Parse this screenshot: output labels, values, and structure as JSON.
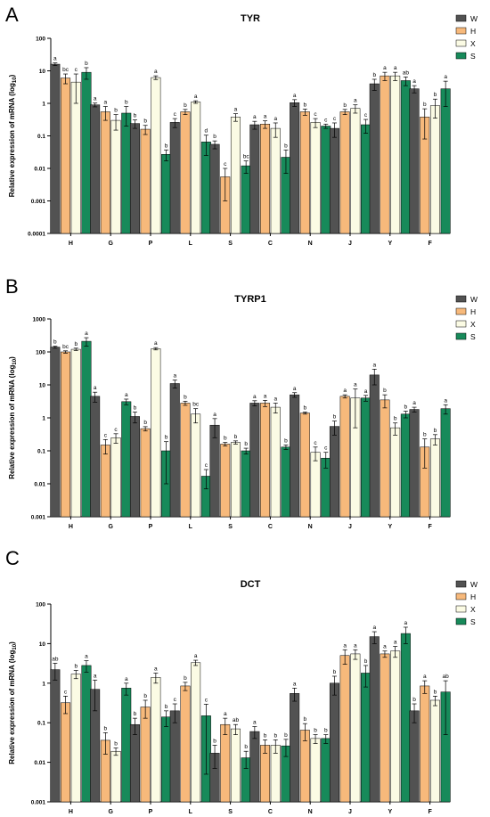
{
  "figure": {
    "legend_order": [
      "W",
      "H",
      "X",
      "S"
    ]
  },
  "chart_data": [
    {
      "panel_letter": "A",
      "type": "bar",
      "title": "TYR",
      "ylabel": "Relative expression of  mRNA",
      "ylabel_sub": "(log10)",
      "yscale": "log",
      "ylim": [
        0.0001,
        100
      ],
      "yticks": [
        "100",
        "10",
        "1",
        "0.1",
        "0.01",
        "0.001",
        "0.0001"
      ],
      "grid": false,
      "legend_placement": "top-right",
      "categories": [
        "H",
        "G",
        "P",
        "L",
        "S",
        "C",
        "N",
        "J",
        "Y",
        "F"
      ],
      "series": [
        {
          "name": "W",
          "color": "#525252",
          "values": [
            16,
            0.9,
            0.24,
            0.26,
            0.055,
            0.22,
            1.05,
            0.17,
            4.0,
            2.8
          ],
          "err": [
            1.5,
            0.12,
            0.07,
            0.08,
            0.015,
            0.06,
            0.25,
            0.08,
            1.5,
            0.7
          ],
          "letters": [
            "a",
            "a",
            "b",
            "c",
            "b",
            "a",
            "a",
            "c",
            "b",
            "a"
          ]
        },
        {
          "name": "H",
          "color": "#f7b97b",
          "values": [
            6.0,
            0.55,
            0.16,
            0.55,
            0.0055,
            0.23,
            0.55,
            0.55,
            7.0,
            0.38
          ],
          "err": [
            2.0,
            0.25,
            0.05,
            0.1,
            0.0045,
            0.06,
            0.12,
            0.1,
            2.0,
            0.3
          ],
          "letters": [
            "bc",
            "a",
            "b",
            "b",
            "c",
            "a",
            "b",
            "b",
            "a",
            "b"
          ]
        },
        {
          "name": "X",
          "color": "#fbfbe4",
          "values": [
            4.5,
            0.3,
            6.2,
            1.1,
            0.38,
            0.17,
            0.26,
            0.7,
            7.0,
            0.85
          ],
          "err": [
            3.5,
            0.15,
            0.8,
            0.1,
            0.1,
            0.08,
            0.08,
            0.2,
            2.0,
            0.5
          ],
          "letters": [
            "c",
            "b",
            "a",
            "a",
            "a",
            "a",
            "c",
            "a",
            "a",
            "b"
          ]
        },
        {
          "name": "S",
          "color": "#178a5a",
          "values": [
            9.0,
            0.5,
            0.027,
            0.065,
            0.012,
            0.022,
            0.2,
            0.22,
            5.0,
            2.8
          ],
          "err": [
            3.5,
            0.3,
            0.01,
            0.04,
            0.005,
            0.015,
            0.03,
            0.1,
            1.5,
            2.0
          ],
          "letters": [
            "b",
            "b",
            "b",
            "d",
            "bc",
            "b",
            "c",
            "c",
            "ab",
            "a"
          ]
        }
      ]
    },
    {
      "panel_letter": "B",
      "type": "bar",
      "title": "TYRP1",
      "ylabel": "Relative expression of  mRNA",
      "ylabel_sub": "(log10)",
      "yscale": "log",
      "ylim": [
        0.001,
        1000
      ],
      "yticks": [
        "1000",
        "100",
        "10",
        "1",
        "0.1",
        "0.01",
        "0.001"
      ],
      "grid": false,
      "legend_placement": "top-right",
      "categories": [
        "H",
        "G",
        "P",
        "L",
        "S",
        "C",
        "N",
        "J",
        "Y",
        "F"
      ],
      "series": [
        {
          "name": "W",
          "color": "#525252",
          "values": [
            140,
            4.5,
            1.1,
            11,
            0.6,
            2.8,
            5.0,
            0.55,
            20,
            1.8
          ],
          "err": [
            10,
            1.5,
            0.4,
            3,
            0.35,
            0.5,
            0.8,
            0.25,
            10,
            0.3
          ],
          "letters": [
            "b",
            "a",
            "b",
            "a",
            "a",
            "a",
            "a",
            "b",
            "a",
            "a"
          ]
        },
        {
          "name": "H",
          "color": "#f7b97b",
          "values": [
            100,
            0.15,
            0.47,
            2.8,
            0.16,
            2.8,
            1.4,
            4.5,
            3.5,
            0.13
          ],
          "err": [
            8,
            0.07,
            0.07,
            0.4,
            0.02,
            0.6,
            0.1,
            0.5,
            1.5,
            0.1
          ],
          "letters": [
            "bc",
            "c",
            "b",
            "b",
            "b",
            "a",
            "b",
            "a",
            "b",
            "b"
          ]
        },
        {
          "name": "X",
          "color": "#fbfbe4",
          "values": [
            120,
            0.25,
            125,
            1.3,
            0.18,
            2.1,
            0.09,
            4.0,
            0.5,
            0.23
          ],
          "err": [
            10,
            0.08,
            10,
            0.6,
            0.02,
            0.7,
            0.04,
            3.5,
            0.2,
            0.08
          ],
          "letters": [
            "b",
            "c",
            "a",
            "bc",
            "b",
            "a",
            "c",
            "a",
            "b",
            "b"
          ]
        },
        {
          "name": "S",
          "color": "#178a5a",
          "values": [
            210,
            3.1,
            0.1,
            0.017,
            0.1,
            0.13,
            0.06,
            4.0,
            1.3,
            1.9
          ],
          "err": [
            60,
            0.6,
            0.09,
            0.01,
            0.02,
            0.02,
            0.03,
            0.8,
            0.3,
            0.6
          ],
          "letters": [
            "a",
            "a",
            "b",
            "c",
            "b",
            "b",
            "c",
            "a",
            "b",
            "a"
          ]
        }
      ]
    },
    {
      "panel_letter": "C",
      "type": "bar",
      "title": "DCT",
      "ylabel": "Relative expression of  mRNA",
      "ylabel_sub": "(log10)",
      "yscale": "log",
      "ylim": [
        0.001,
        100
      ],
      "yticks": [
        "100",
        "10",
        "1",
        "0.1",
        "0.01",
        "0.001"
      ],
      "grid": false,
      "legend_placement": "top-right",
      "categories": [
        "H",
        "G",
        "P",
        "L",
        "S",
        "C",
        "N",
        "J",
        "Y",
        "F"
      ],
      "series": [
        {
          "name": "W",
          "color": "#525252",
          "values": [
            2.2,
            0.7,
            0.09,
            0.2,
            0.017,
            0.06,
            0.55,
            1.0,
            15,
            0.2
          ],
          "err": [
            1.0,
            0.5,
            0.04,
            0.1,
            0.01,
            0.02,
            0.2,
            0.5,
            5,
            0.1
          ],
          "letters": [
            "ab",
            "a",
            "b",
            "c",
            "b",
            "a",
            "a",
            "b",
            "a",
            "b"
          ]
        },
        {
          "name": "H",
          "color": "#f7b97b",
          "values": [
            0.32,
            0.036,
            0.25,
            0.85,
            0.09,
            0.027,
            0.065,
            5.0,
            5.5,
            0.85
          ],
          "err": [
            0.15,
            0.02,
            0.12,
            0.2,
            0.04,
            0.01,
            0.03,
            2.0,
            1.0,
            0.3
          ],
          "letters": [
            "c",
            "b",
            "b",
            "b",
            "a",
            "b",
            "b",
            "a",
            "a",
            "a"
          ]
        },
        {
          "name": "X",
          "color": "#fbfbe4",
          "values": [
            1.7,
            0.019,
            1.4,
            3.3,
            0.07,
            0.027,
            0.04,
            5.5,
            6.5,
            0.37
          ],
          "err": [
            0.4,
            0.004,
            0.4,
            0.5,
            0.02,
            0.01,
            0.01,
            1.5,
            2.0,
            0.1
          ],
          "letters": [
            "b",
            "b",
            "a",
            "a",
            "ab",
            "b",
            "b",
            "a",
            "a",
            "b"
          ]
        },
        {
          "name": "S",
          "color": "#178a5a",
          "values": [
            2.8,
            0.75,
            0.14,
            0.15,
            0.013,
            0.026,
            0.04,
            1.8,
            18,
            0.6
          ],
          "err": [
            0.9,
            0.25,
            0.06,
            0.145,
            0.006,
            0.012,
            0.01,
            1.0,
            8,
            0.55
          ],
          "letters": [
            "a",
            "a",
            "b",
            "c",
            "b",
            "b",
            "b",
            "b",
            "a",
            "ab"
          ]
        }
      ]
    }
  ]
}
